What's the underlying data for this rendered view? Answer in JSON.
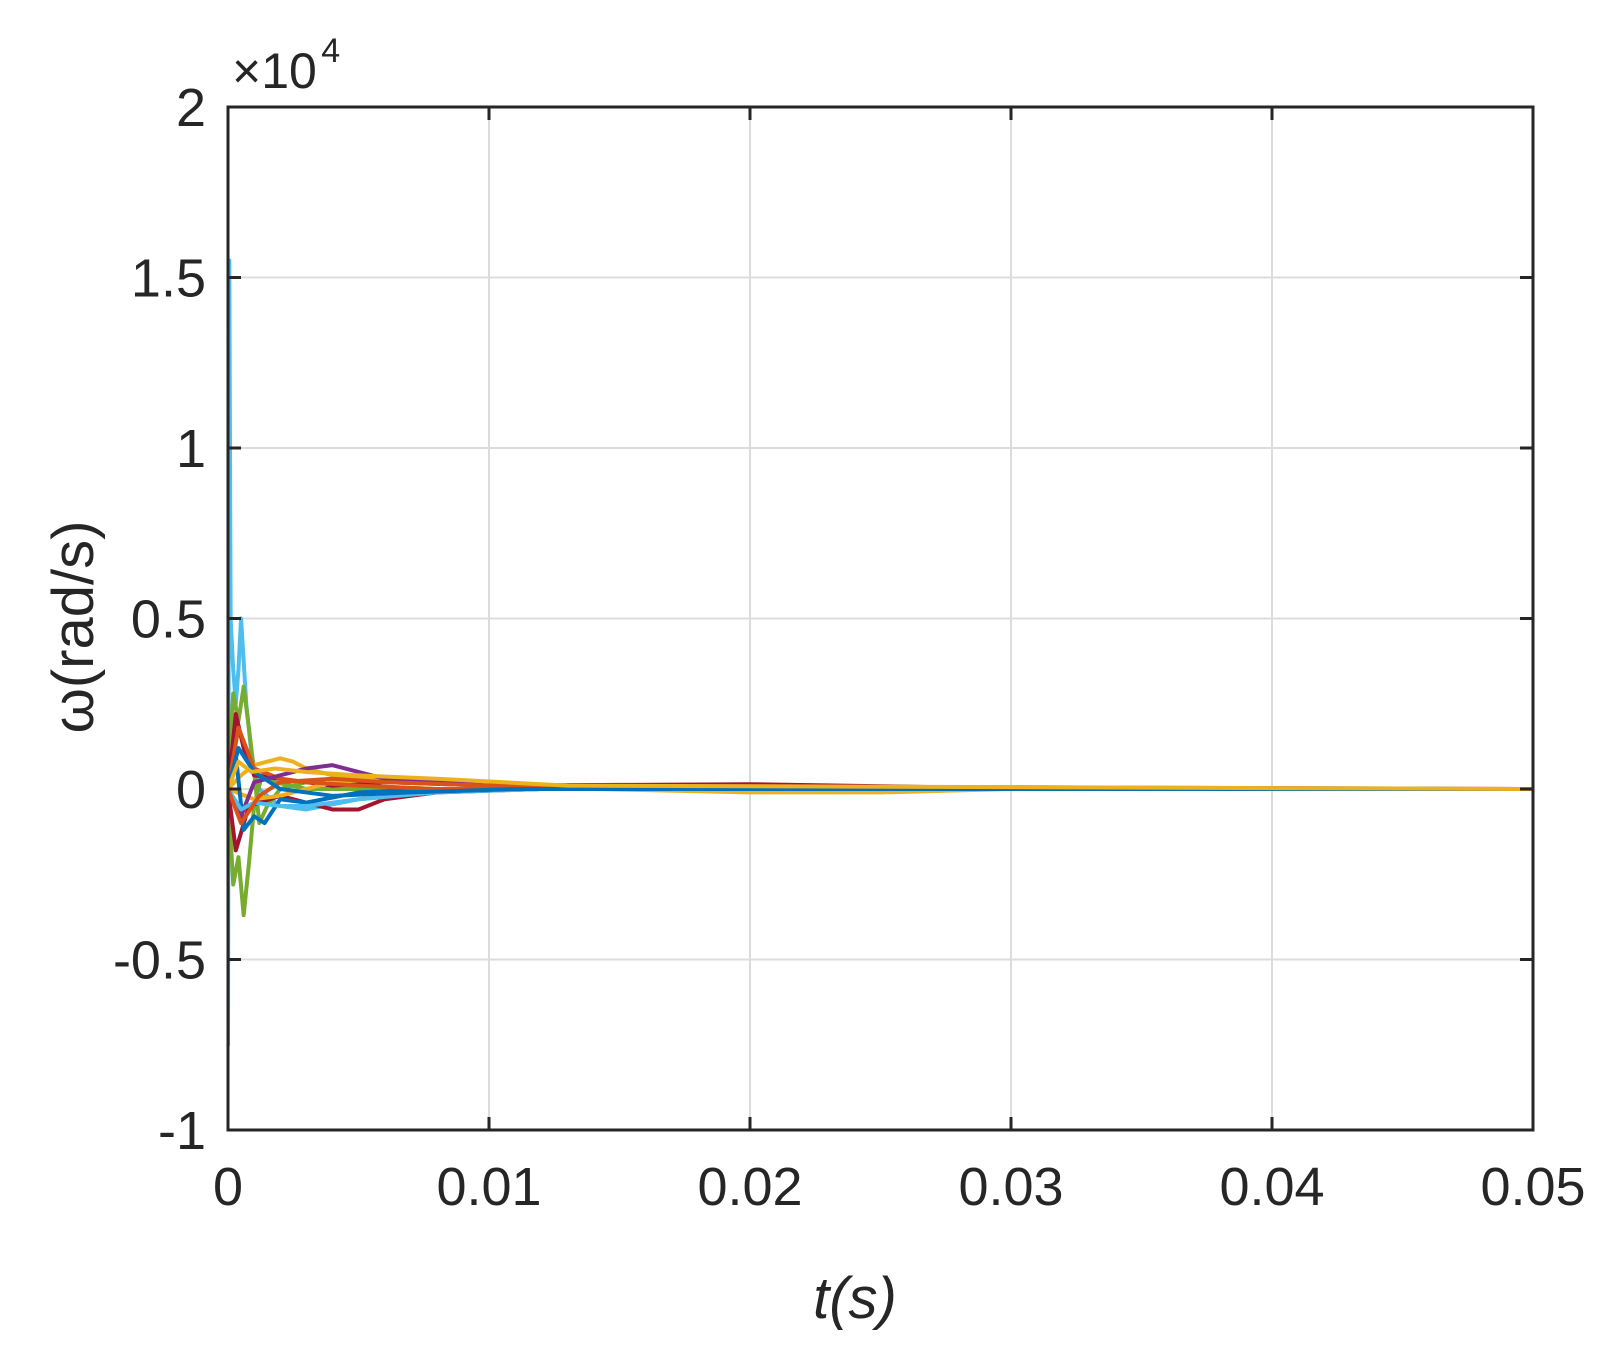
{
  "chart_data": {
    "type": "line",
    "title": "",
    "xlabel": "t(s)",
    "ylabel": "ω(rad/s)",
    "exponent_label": {
      "times": "×10",
      "power": "4"
    },
    "xlim": [
      0,
      0.05
    ],
    "ylim": [
      -1,
      2
    ],
    "y_scale_multiplier": 10000,
    "grid": true,
    "legend": "none",
    "x_ticks": [
      "0",
      "0.01",
      "0.02",
      "0.03",
      "0.04",
      "0.05"
    ],
    "y_ticks": [
      "-1",
      "-0.5",
      "0",
      "0.5",
      "1",
      "1.5",
      "2"
    ],
    "series": [
      {
        "color": "#4DBEEE",
        "x": [
          0,
          5e-05,
          0.0001,
          0.0002,
          0.0003,
          0.0004,
          0.0005,
          0.0007,
          0.0009,
          0.0012,
          0.0015,
          0.002,
          0.003,
          0.005,
          0.008,
          0.012,
          0.02,
          0.03,
          0.05
        ],
        "y": [
          -0.75,
          1.55,
          0.5,
          0.35,
          0.25,
          0.35,
          0.5,
          0.25,
          0.1,
          0.0,
          -0.02,
          -0.05,
          -0.06,
          -0.03,
          -0.01,
          0.0,
          0.0,
          0.0,
          0.0
        ]
      },
      {
        "color": "#77AC30",
        "x": [
          0,
          0.0002,
          0.0004,
          0.0006,
          0.0008,
          0.001,
          0.0012,
          0.0015,
          0.002,
          0.003,
          0.005,
          0.008,
          0.012,
          0.02,
          0.03,
          0.05
        ],
        "y": [
          0.0,
          0.28,
          0.2,
          0.3,
          0.18,
          0.05,
          -0.1,
          -0.05,
          0.0,
          0.02,
          0.01,
          0.0,
          0.0,
          0.0,
          0.0,
          0.0
        ]
      },
      {
        "color": "#77AC30",
        "x": [
          0,
          0.0002,
          0.0004,
          0.0006,
          0.0008,
          0.001,
          0.0013,
          0.0018,
          0.003,
          0.006,
          0.01,
          0.05
        ],
        "y": [
          0.0,
          -0.28,
          -0.2,
          -0.37,
          -0.22,
          -0.05,
          0.04,
          0.02,
          0.0,
          0.0,
          0.0,
          0.0
        ]
      },
      {
        "color": "#A2142F",
        "x": [
          0,
          0.0003,
          0.0006,
          0.001,
          0.002,
          0.004,
          0.006,
          0.01,
          0.015,
          0.02,
          0.025,
          0.03,
          0.035,
          0.05
        ],
        "y": [
          0.0,
          0.22,
          0.12,
          0.04,
          0.03,
          0.01,
          0.02,
          0.01,
          0.012,
          0.014,
          0.008,
          0.002,
          0.0,
          0.0
        ]
      },
      {
        "color": "#A2142F",
        "x": [
          0,
          0.0003,
          0.0008,
          0.002,
          0.003,
          0.004,
          0.005,
          0.006,
          0.008,
          0.012,
          0.02,
          0.03,
          0.05
        ],
        "y": [
          0.0,
          -0.18,
          -0.05,
          -0.02,
          -0.04,
          -0.06,
          -0.06,
          -0.03,
          -0.01,
          0.0,
          0.0,
          0.0,
          0.0
        ]
      },
      {
        "color": "#EDB120",
        "x": [
          0,
          0.0005,
          0.001,
          0.0015,
          0.002,
          0.0025,
          0.003,
          0.004,
          0.006,
          0.009,
          0.014,
          0.02,
          0.025,
          0.03,
          0.035,
          0.05
        ],
        "y": [
          0.0,
          0.04,
          0.07,
          0.08,
          0.09,
          0.08,
          0.06,
          0.04,
          0.03,
          0.02,
          0.0,
          -0.01,
          -0.01,
          0.0,
          0.0,
          0.0
        ]
      },
      {
        "color": "#EDB120",
        "x": [
          0,
          0.001,
          0.002,
          0.004,
          0.006,
          0.008,
          0.012,
          0.02,
          0.03,
          0.05
        ],
        "y": [
          0.0,
          -0.03,
          -0.02,
          0.02,
          0.03,
          0.02,
          0.01,
          0.0,
          0.0,
          0.0
        ]
      },
      {
        "color": "#0072BD",
        "x": [
          0,
          0.0003,
          0.0006,
          0.001,
          0.0014,
          0.002,
          0.003,
          0.005,
          0.008,
          0.012,
          0.05
        ],
        "y": [
          0.0,
          0.1,
          -0.12,
          -0.08,
          -0.1,
          -0.03,
          -0.04,
          -0.01,
          0.0,
          0.0,
          0.0
        ]
      },
      {
        "color": "#D95319",
        "x": [
          0,
          0.0004,
          0.001,
          0.002,
          0.003,
          0.005,
          0.008,
          0.012,
          0.05
        ],
        "y": [
          0.0,
          0.18,
          0.06,
          0.03,
          0.02,
          0.01,
          0.0,
          0.0,
          0.0
        ]
      },
      {
        "color": "#7E2F8E",
        "x": [
          0,
          0.0005,
          0.001,
          0.002,
          0.003,
          0.004,
          0.006,
          0.01,
          0.05
        ],
        "y": [
          0.0,
          -0.08,
          0.02,
          0.04,
          0.06,
          0.07,
          0.03,
          0.01,
          0.0
        ]
      },
      {
        "color": "#4DBEEE",
        "x": [
          0,
          0.0005,
          0.001,
          0.002,
          0.003,
          0.005,
          0.008,
          0.012,
          0.05
        ],
        "y": [
          0.0,
          -0.06,
          -0.04,
          -0.05,
          -0.05,
          -0.03,
          -0.01,
          0.0,
          0.0
        ]
      },
      {
        "color": "#D95319",
        "x": [
          0,
          0.0005,
          0.0012,
          0.002,
          0.004,
          0.006,
          0.01,
          0.015,
          0.05
        ],
        "y": [
          0.0,
          -0.1,
          -0.02,
          0.02,
          0.03,
          0.02,
          0.01,
          0.0,
          0.0
        ]
      },
      {
        "color": "#0072BD",
        "x": [
          0,
          0.0004,
          0.001,
          0.002,
          0.004,
          0.007,
          0.011,
          0.05
        ],
        "y": [
          0.0,
          0.12,
          0.05,
          0.0,
          -0.02,
          -0.01,
          0.0,
          0.0
        ]
      },
      {
        "color": "#EDB120",
        "x": [
          0,
          0.0004,
          0.0009,
          0.0018,
          0.003,
          0.005,
          0.008,
          0.013,
          0.05
        ],
        "y": [
          0.0,
          0.08,
          0.05,
          0.06,
          0.05,
          0.04,
          0.03,
          0.01,
          0.0
        ]
      }
    ]
  }
}
